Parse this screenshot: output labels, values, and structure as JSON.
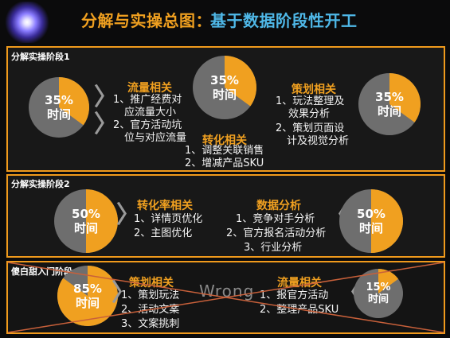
{
  "title": {
    "part1": "分解与实操总图：",
    "part2": "基于数据阶段性开工"
  },
  "stage1": {
    "label": "分解实操阶段1",
    "donut_left": {
      "percent": "35%",
      "label": "时间",
      "fill": 0.35
    },
    "donut_center": {
      "percent": "35%",
      "label": "时间",
      "fill": 0.35
    },
    "donut_right": {
      "percent": "35%",
      "label": "时间",
      "fill": 0.35
    },
    "traffic": {
      "title": "流量相关",
      "items": [
        "1、推广经费对",
        "应流量大小",
        "2、官方活动坑",
        "位与对应流量"
      ]
    },
    "conversion": {
      "title": "转化相关",
      "items": [
        "1、调整关联销售",
        "2、增减产品SKU"
      ]
    },
    "planning": {
      "title": "策划相关",
      "items": [
        "1、玩法整理及",
        "效果分析",
        "2、策划页面设",
        "计及视觉分析"
      ]
    }
  },
  "stage2": {
    "label": "分解实操阶段2",
    "donut_left": {
      "percent": "50%",
      "label": "时间",
      "fill": 0.5
    },
    "donut_right": {
      "percent": "50%",
      "label": "时间",
      "fill": 0.5
    },
    "conversion_rate": {
      "title": "转化率相关",
      "items": [
        "1、详情页优化",
        "2、主图优化"
      ]
    },
    "data_analysis": {
      "title": "数据分析",
      "items": [
        "1、竞争对手分析",
        "2、官方报名活动分析",
        "3、行业分析"
      ]
    }
  },
  "stage3": {
    "label": "傻白甜入门阶段",
    "donut_left": {
      "percent": "85%",
      "label": "时间",
      "fill": 0.85
    },
    "donut_right": {
      "percent": "15%",
      "label": "时间",
      "fill": 0.15
    },
    "planning": {
      "title": "策划相关",
      "items": [
        "1、策划玩法",
        "2、活动文案",
        "3、文案挑刺"
      ]
    },
    "traffic": {
      "title": "流量相关",
      "items": [
        "1、报官方活动",
        "2、整理产品SKU"
      ]
    },
    "watermark": "Wrong"
  },
  "colors": {
    "accent": "#f0a020",
    "title_blue": "#4fb8e8",
    "donut_base": "#6e6e6e",
    "cross": "#c8603a"
  }
}
